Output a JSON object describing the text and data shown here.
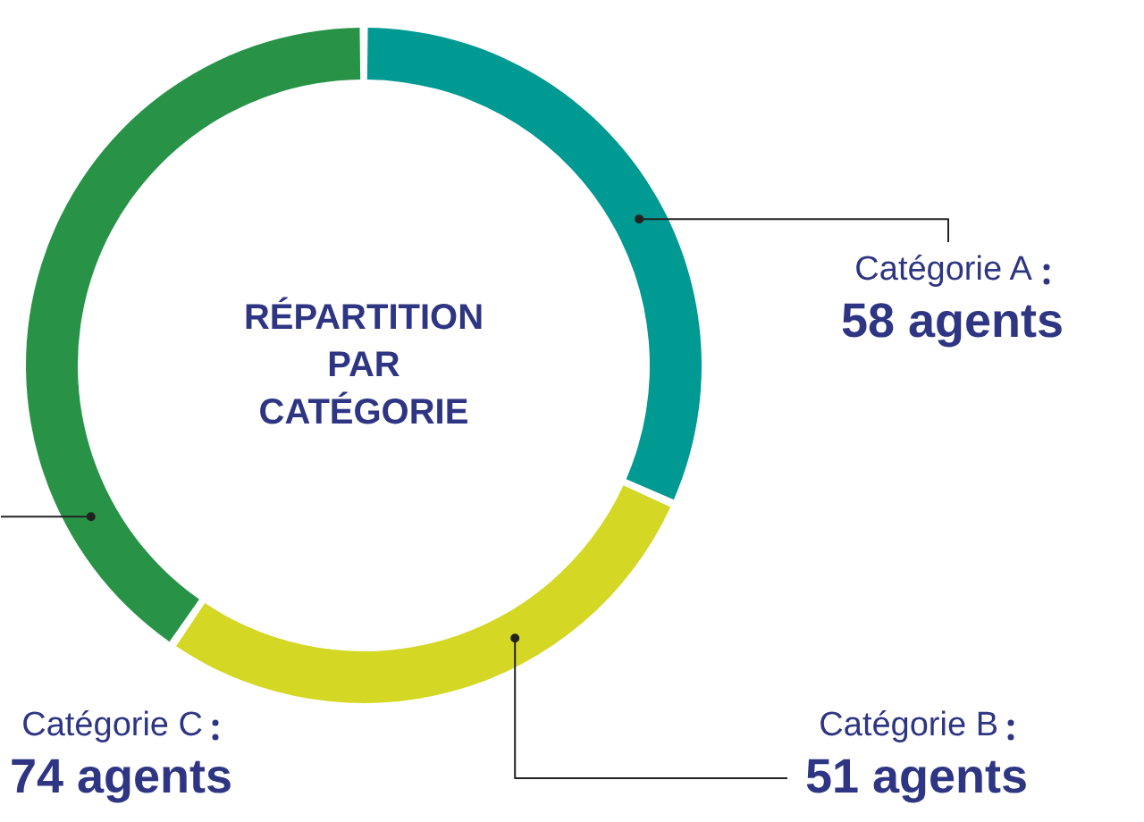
{
  "chart_data": {
    "type": "donut",
    "title": "RÉPARTITION PAR CATÉGORIE",
    "categories": [
      "Catégorie A",
      "Catégorie B",
      "Catégorie C"
    ],
    "values": [
      58,
      51,
      74
    ],
    "value_labels": [
      "58 agents",
      "51 agents",
      "74 agents"
    ],
    "colors": [
      "#009a93",
      "#d4d723",
      "#289347"
    ]
  }
}
